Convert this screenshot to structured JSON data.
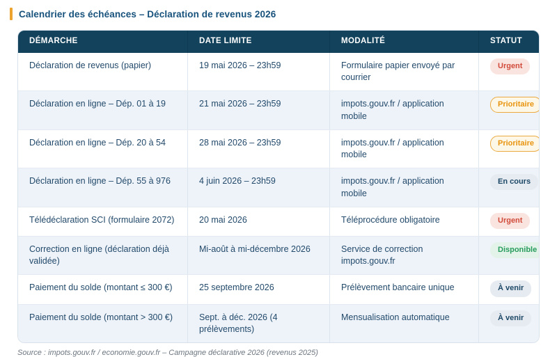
{
  "page": {
    "title": "Calendrier des échéances – Déclaration de revenus 2026",
    "source": "Source : impots.gouv.fr / economie.gouv.fr – Campagne déclarative 2026 (revenus 2025)"
  },
  "table": {
    "columns": [
      "DÉMARCHE",
      "DATE LIMITE",
      "MODALITÉ",
      "STATUT"
    ],
    "rows": [
      {
        "demarche": "Déclaration de revenus (papier)",
        "date_limite": "19 mai 2026 – 23h59",
        "modalite": "Formulaire papier envoyé par courrier",
        "statut": "Urgent",
        "statut_type": "urgent"
      },
      {
        "demarche": "Déclaration en ligne – Dép. 01 à 19",
        "date_limite": "21 mai 2026 – 23h59",
        "modalite": "impots.gouv.fr / application mobile",
        "statut": "Prioritaire",
        "statut_type": "prioritaire"
      },
      {
        "demarche": "Déclaration en ligne – Dép. 20 à 54",
        "date_limite": "28 mai 2026 – 23h59",
        "modalite": "impots.gouv.fr / application mobile",
        "statut": "Prioritaire",
        "statut_type": "prioritaire"
      },
      {
        "demarche": "Déclaration en ligne – Dép. 55 à 976",
        "date_limite": "4 juin 2026 – 23h59",
        "modalite": "impots.gouv.fr / application mobile",
        "statut": "En cours",
        "statut_type": "encours"
      },
      {
        "demarche": "Télédéclaration SCI (formulaire 2072)",
        "date_limite": "20 mai 2026",
        "modalite": "Téléprocédure obligatoire",
        "statut": "Urgent",
        "statut_type": "urgent"
      },
      {
        "demarche": "Correction en ligne (déclaration déjà validée)",
        "date_limite": "Mi-août à mi-décembre 2026",
        "modalite": "Service de correction impots.gouv.fr",
        "statut": "Disponible",
        "statut_type": "disponible"
      },
      {
        "demarche": "Paiement du solde (montant ≤ 300 €)",
        "date_limite": "25 septembre 2026",
        "modalite": "Prélèvement bancaire unique",
        "statut": "À venir",
        "statut_type": "avenir"
      },
      {
        "demarche": "Paiement du solde (montant > 300 €)",
        "date_limite": "Sept. à déc. 2026 (4 prélèvements)",
        "modalite": "Mensualisation automatique",
        "statut": "À venir",
        "statut_type": "avenir"
      }
    ]
  },
  "colors": {
    "accent_bar": "#EDA32F",
    "header_bg": "#12425C",
    "header_text": "#FFFFFF",
    "body_text": "#234A6B",
    "title_text": "#17527C",
    "row_stripe": "#EEF3F9",
    "table_border": "#D9E2EA",
    "badge_urgent_text": "#D14B3B",
    "badge_urgent_bg": "#FAE4E0",
    "badge_prioritaire_text": "#E8940F",
    "badge_prioritaire_bg": "#FDF7E7",
    "badge_prioritaire_border": "#EBAA3F",
    "badge_neutral_text": "#1D4866",
    "badge_neutral_bg": "#E6EBF2",
    "badge_disponible_text": "#279C5C",
    "badge_disponible_bg": "#E3F3E9",
    "source_text": "#6E7781"
  }
}
